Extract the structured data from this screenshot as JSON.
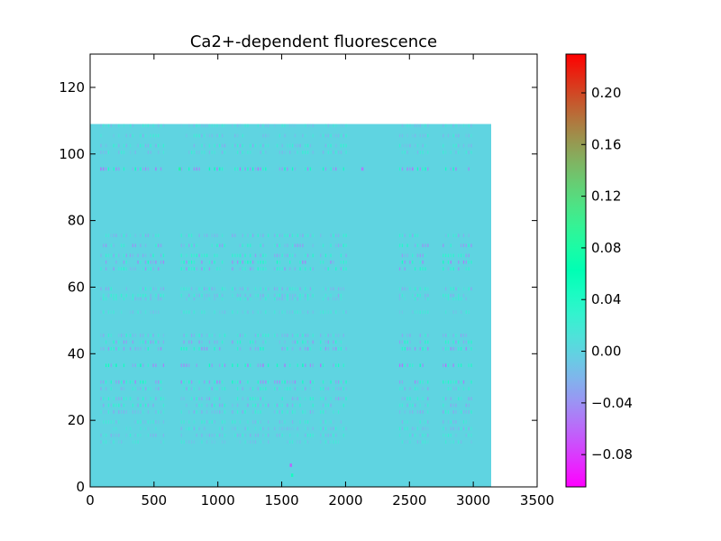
{
  "chart_data": {
    "type": "heatmap",
    "title": "Ca2+-dependent fluorescence",
    "xlabel": "",
    "ylabel": "",
    "xlim": [
      0,
      3500
    ],
    "ylim": [
      0,
      130
    ],
    "xticks": [
      "0",
      "500",
      "1000",
      "1500",
      "2000",
      "2500",
      "3000",
      "3500"
    ],
    "yticks": [
      "0",
      "20",
      "40",
      "60",
      "80",
      "100",
      "120"
    ],
    "data_extent": {
      "x": [
        0,
        3140
      ],
      "y": [
        0,
        109
      ]
    },
    "background_value": 0.0,
    "colormap": "rainbow",
    "colorbar": {
      "range": [
        -0.105,
        0.23
      ],
      "ticks": [
        "−0.08",
        "−0.04",
        "0.00",
        "0.04",
        "0.08",
        "0.12",
        "0.16",
        "0.20"
      ],
      "tick_values": [
        -0.08,
        -0.04,
        0.0,
        0.04,
        0.08,
        0.12,
        0.16,
        0.2
      ]
    },
    "active_time_windows": [
      [
        80,
        300
      ],
      [
        310,
        580
      ],
      [
        710,
        1060
      ],
      [
        1110,
        1400
      ],
      [
        1440,
        1760
      ],
      [
        1800,
        2020
      ],
      [
        2420,
        2660
      ],
      [
        2760,
        2990
      ]
    ],
    "active_rows": [
      {
        "row": 108,
        "amplitude": 0.02
      },
      {
        "row": 105,
        "amplitude": 0.025
      },
      {
        "row": 102,
        "amplitude": 0.03
      },
      {
        "row": 100,
        "amplitude": 0.025
      },
      {
        "row": 95,
        "amplitude": -0.06
      },
      {
        "row": 75,
        "amplitude": 0.03
      },
      {
        "row": 72,
        "amplitude": 0.04
      },
      {
        "row": 69,
        "amplitude": 0.04
      },
      {
        "row": 67,
        "amplitude": -0.05
      },
      {
        "row": 65,
        "amplitude": 0.04
      },
      {
        "row": 59,
        "amplitude": 0.03
      },
      {
        "row": 57,
        "amplitude": 0.03
      },
      {
        "row": 56,
        "amplitude": 0.025
      },
      {
        "row": 52,
        "amplitude": 0.02
      },
      {
        "row": 45,
        "amplitude": 0.03
      },
      {
        "row": 43,
        "amplitude": 0.04
      },
      {
        "row": 41,
        "amplitude": 0.045
      },
      {
        "row": 36,
        "amplitude": 0.06
      },
      {
        "row": 31,
        "amplitude": -0.05
      },
      {
        "row": 29,
        "amplitude": 0.03
      },
      {
        "row": 26,
        "amplitude": 0.035
      },
      {
        "row": 24,
        "amplitude": 0.035
      },
      {
        "row": 22,
        "amplitude": 0.03
      },
      {
        "row": 19,
        "amplitude": 0.025
      },
      {
        "row": 17,
        "amplitude": 0.025
      },
      {
        "row": 15,
        "amplitude": 0.025
      },
      {
        "row": 13,
        "amplitude": 0.02
      }
    ],
    "point_events": [
      {
        "x": 700,
        "y": 95,
        "value": 0.08
      },
      {
        "x": 1570,
        "y": 6,
        "value": -0.06
      },
      {
        "x": 1580,
        "y": 3,
        "value": 0.05
      },
      {
        "x": 2130,
        "y": 95,
        "value": -0.05
      }
    ],
    "grid": false,
    "legend": "colorbar-right"
  }
}
